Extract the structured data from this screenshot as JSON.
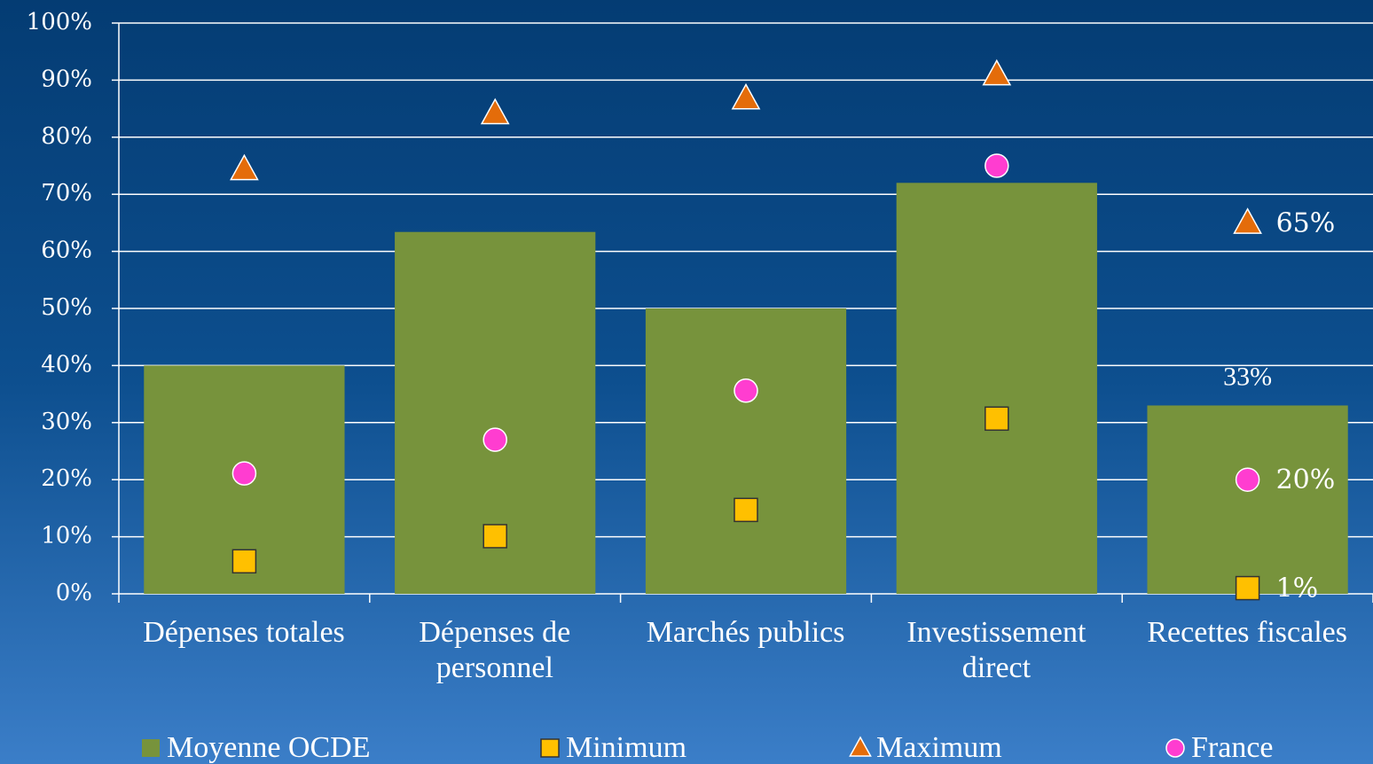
{
  "chart_data": {
    "type": "bar",
    "categories": [
      "Dépenses totales",
      "Dépenses de personnel",
      "Marchés publics",
      "Investissement direct",
      "Recettes fiscales"
    ],
    "series": [
      {
        "name": "Moyenne OCDE",
        "type": "bar",
        "color": "#77933c",
        "values": [
          40,
          63.4,
          50,
          72,
          33
        ],
        "value_labels": [
          null,
          null,
          null,
          null,
          "33%"
        ]
      },
      {
        "name": "Minimum",
        "type": "scatter",
        "marker": "square",
        "color": "#ffc000",
        "values": [
          5.7,
          10.1,
          14.7,
          30.7,
          1
        ],
        "value_labels": [
          null,
          null,
          null,
          null,
          "1%"
        ]
      },
      {
        "name": "Maximum",
        "type": "scatter",
        "marker": "triangle",
        "color": "#e46c0a",
        "values": [
          74.4,
          84.2,
          86.8,
          91,
          65
        ],
        "value_labels": [
          null,
          null,
          null,
          null,
          "65%"
        ]
      },
      {
        "name": "France",
        "type": "scatter",
        "marker": "circle",
        "color": "#ff3dd0",
        "values": [
          21.1,
          27,
          35.6,
          75,
          20
        ],
        "value_labels": [
          null,
          null,
          null,
          null,
          "20%"
        ]
      }
    ],
    "ylim": [
      0,
      100
    ],
    "yticks": [
      {
        "value": 0,
        "label": "0%"
      },
      {
        "value": 10,
        "label": "10%"
      },
      {
        "value": 20,
        "label": "20%"
      },
      {
        "value": 30,
        "label": "30%"
      },
      {
        "value": 40,
        "label": "40%"
      },
      {
        "value": 50,
        "label": "50%"
      },
      {
        "value": 60,
        "label": "60%"
      },
      {
        "value": 70,
        "label": "70%"
      },
      {
        "value": 80,
        "label": "80%"
      },
      {
        "value": 90,
        "label": "90%"
      },
      {
        "value": 100,
        "label": "100%"
      }
    ],
    "grid": true,
    "legend": "bottom"
  }
}
